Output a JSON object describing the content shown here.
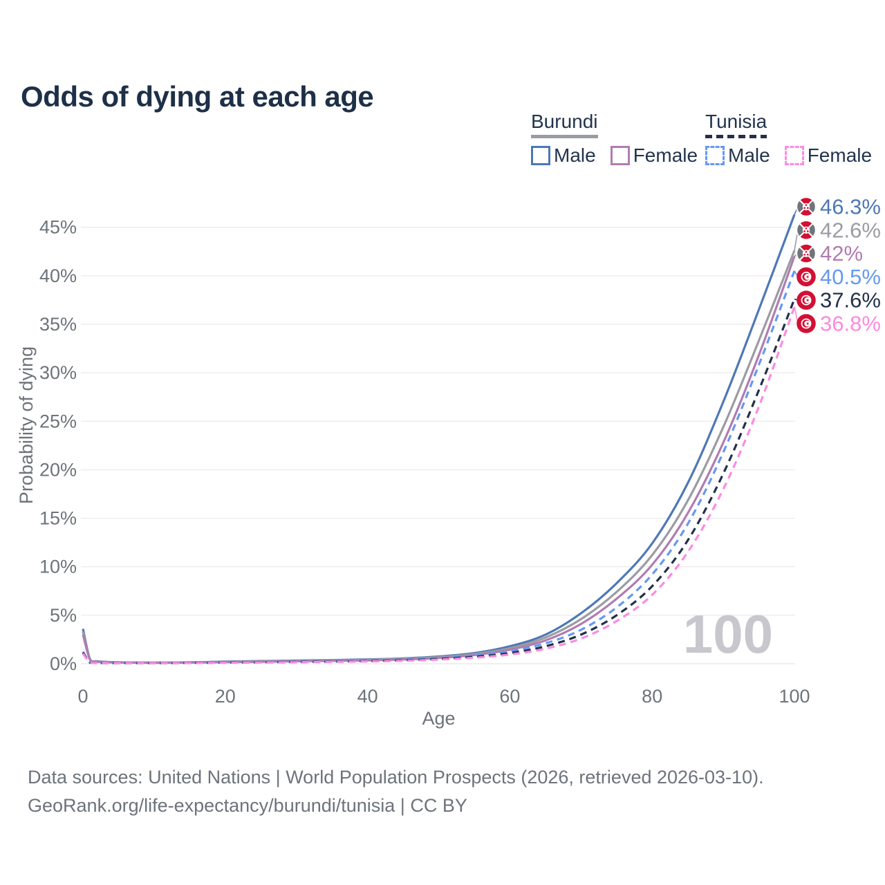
{
  "title": "Odds of dying at each age",
  "legend": {
    "groups": [
      {
        "name": "Burundi",
        "line_style": "solid",
        "underline_color": "#9b9ca1",
        "items": [
          {
            "label": "Male",
            "color": "#4d78b5",
            "dashed": false
          },
          {
            "label": "Female",
            "color": "#b07cb0",
            "dashed": false
          }
        ]
      },
      {
        "name": "Tunisia",
        "line_style": "dashed",
        "underline_color": "#22304a",
        "items": [
          {
            "label": "Male",
            "color": "#6598f2",
            "dashed": true
          },
          {
            "label": "Female",
            "color": "#fe8adf",
            "dashed": true
          }
        ]
      }
    ]
  },
  "chart_data": {
    "type": "line",
    "title": "Odds of dying at each age",
    "xlabel": "Age",
    "ylabel": "Probability of dying",
    "xlim": [
      0,
      100
    ],
    "ylim": [
      0,
      47
    ],
    "x_ticks": [
      0,
      20,
      40,
      60,
      80,
      100
    ],
    "y_tick_labels": [
      "0%",
      "5%",
      "10%",
      "15%",
      "20%",
      "25%",
      "30%",
      "35%",
      "40%",
      "45%"
    ],
    "y_tick_values": [
      0,
      5,
      10,
      15,
      20,
      25,
      30,
      35,
      40,
      45
    ],
    "grid": true,
    "legend_position": "top-right",
    "watermark": "100",
    "x": [
      0,
      1,
      2,
      5,
      10,
      15,
      20,
      25,
      30,
      35,
      40,
      45,
      50,
      55,
      60,
      65,
      70,
      75,
      80,
      85,
      90,
      95,
      100
    ],
    "series": [
      {
        "id": "burundi-male",
        "country": "Burundi",
        "sex": "Male",
        "color": "#4d78b5",
        "dashed": false,
        "flag": "burundi",
        "end_label": "46.3%",
        "end_value": 46.3,
        "values": [
          3.6,
          0.45,
          0.25,
          0.15,
          0.12,
          0.15,
          0.22,
          0.28,
          0.33,
          0.38,
          0.45,
          0.55,
          0.75,
          1.1,
          1.8,
          3.0,
          5.2,
          8.3,
          12.4,
          18.6,
          27.0,
          36.5,
          46.3
        ]
      },
      {
        "id": "burundi-total",
        "country": "Burundi",
        "color": "#9b9ca1",
        "dashed": false,
        "flag": "burundi",
        "end_label": "42.6%",
        "end_value": 42.6,
        "values": [
          3.3,
          0.42,
          0.23,
          0.14,
          0.11,
          0.14,
          0.2,
          0.25,
          0.3,
          0.34,
          0.4,
          0.5,
          0.68,
          1.0,
          1.6,
          2.7,
          4.6,
          7.4,
          11.2,
          16.8,
          24.4,
          33.3,
          42.6
        ]
      },
      {
        "id": "burundi-female",
        "country": "Burundi",
        "sex": "Female",
        "color": "#b07cb0",
        "dashed": false,
        "flag": "burundi",
        "end_label": "42%",
        "end_value": 42,
        "values": [
          3.0,
          0.4,
          0.21,
          0.13,
          0.1,
          0.12,
          0.17,
          0.21,
          0.26,
          0.3,
          0.35,
          0.44,
          0.6,
          0.9,
          1.45,
          2.4,
          4.1,
          6.7,
          10.2,
          15.5,
          22.8,
          31.8,
          42.0
        ]
      },
      {
        "id": "tunisia-male",
        "country": "Tunisia",
        "sex": "Male",
        "color": "#6598f2",
        "dashed": true,
        "flag": "tunisia",
        "end_label": "40.5%",
        "end_value": 40.5,
        "values": [
          1.25,
          0.12,
          0.08,
          0.06,
          0.06,
          0.09,
          0.14,
          0.18,
          0.22,
          0.26,
          0.32,
          0.42,
          0.58,
          0.85,
          1.3,
          2.1,
          3.5,
          5.8,
          9.2,
          14.4,
          21.8,
          30.8,
          40.5
        ]
      },
      {
        "id": "tunisia-total",
        "country": "Tunisia",
        "color": "#22304a",
        "dashed": true,
        "flag": "tunisia",
        "end_label": "37.6%",
        "end_value": 37.6,
        "values": [
          1.15,
          0.11,
          0.07,
          0.055,
          0.055,
          0.08,
          0.12,
          0.15,
          0.19,
          0.22,
          0.28,
          0.36,
          0.5,
          0.72,
          1.1,
          1.8,
          3.0,
          5.0,
          8.0,
          12.7,
          19.6,
          28.2,
          37.6
        ]
      },
      {
        "id": "tunisia-female",
        "country": "Tunisia",
        "sex": "Female",
        "color": "#fe8adf",
        "dashed": true,
        "flag": "tunisia",
        "end_label": "36.8%",
        "end_value": 36.8,
        "values": [
          1.05,
          0.1,
          0.065,
          0.05,
          0.05,
          0.07,
          0.1,
          0.13,
          0.16,
          0.19,
          0.24,
          0.31,
          0.43,
          0.62,
          0.95,
          1.55,
          2.6,
          4.4,
          7.1,
          11.5,
          18.0,
          26.5,
          36.8
        ]
      }
    ],
    "flag_colors": {
      "red": "#d21034",
      "burundi_side": "#6f767a",
      "white": "#ffffff"
    }
  },
  "footer": {
    "line1": "Data sources: United Nations | World Population Prospects (2026, retrieved 2026-03-10).",
    "line2": "GeoRank.org/life-expectancy/burundi/tunisia | CC BY"
  }
}
